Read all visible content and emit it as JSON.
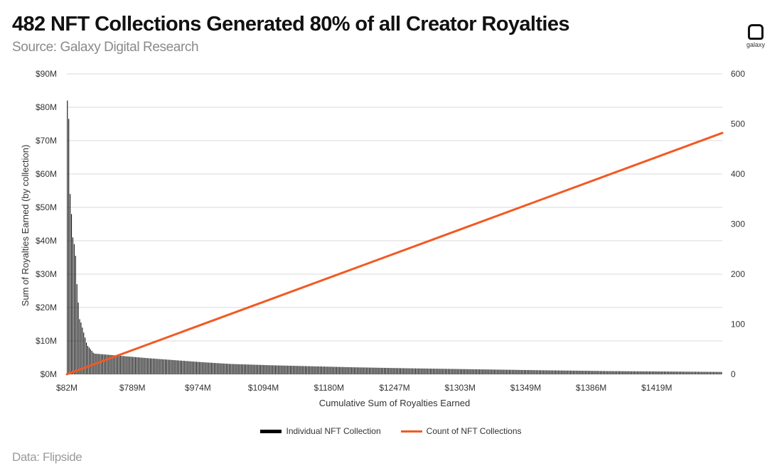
{
  "header": {
    "title": "482 NFT Collections Generated 80% of all Creator Royalties",
    "subtitle": "Source: Galaxy Digital Research",
    "logo_text": "galaxy"
  },
  "footer": {
    "data_source": "Data: Flipside"
  },
  "colors": {
    "bars": "#000000",
    "line": "#f15a22",
    "grid": "#d9d9d9"
  },
  "chart_data": {
    "type": "bar",
    "xlabel": "Cumulative Sum of Royalties Earned",
    "ylabel": "Sum of Royalties Earned (by collection)",
    "y2label": "",
    "x_tick_labels": [
      "$82M",
      "$789M",
      "$974M",
      "$1094M",
      "$1180M",
      "$1247M",
      "$1303M",
      "$1349M",
      "$1386M",
      "$1419M"
    ],
    "y_tick_labels": [
      "$0M",
      "$10M",
      "$20M",
      "$30M",
      "$40M",
      "$50M",
      "$60M",
      "$70M",
      "$80M",
      "$90M"
    ],
    "y2_tick_labels": [
      "0",
      "100",
      "200",
      "300",
      "400",
      "500",
      "600"
    ],
    "ylim": [
      0,
      90
    ],
    "y2lim": [
      0,
      600
    ],
    "grid": true,
    "legend_position": "bottom",
    "n_collections": 482,
    "top_collection_values_musd": [
      82,
      76.5,
      54,
      48,
      41,
      39,
      35.5,
      27,
      21.5,
      16.5,
      15.5,
      14,
      12.5,
      11,
      9.5,
      8.5,
      8,
      7.5,
      7,
      6.5
    ],
    "tail_values_musd_by_rank": [
      [
        20,
        6.2
      ],
      [
        40,
        5.5
      ],
      [
        60,
        4.8
      ],
      [
        80,
        4.2
      ],
      [
        100,
        3.6
      ],
      [
        120,
        3.1
      ],
      [
        150,
        2.7
      ],
      [
        180,
        2.4
      ],
      [
        210,
        2.1
      ],
      [
        250,
        1.8
      ],
      [
        300,
        1.5
      ],
      [
        350,
        1.2
      ],
      [
        400,
        0.95
      ],
      [
        450,
        0.8
      ],
      [
        482,
        0.7
      ]
    ],
    "series": [
      {
        "name": "Individual NFT Collection",
        "type": "bar",
        "axis": "left"
      },
      {
        "name": "Count of NFT Collections",
        "type": "line",
        "axis": "right",
        "start": 0,
        "end": 482
      }
    ]
  }
}
